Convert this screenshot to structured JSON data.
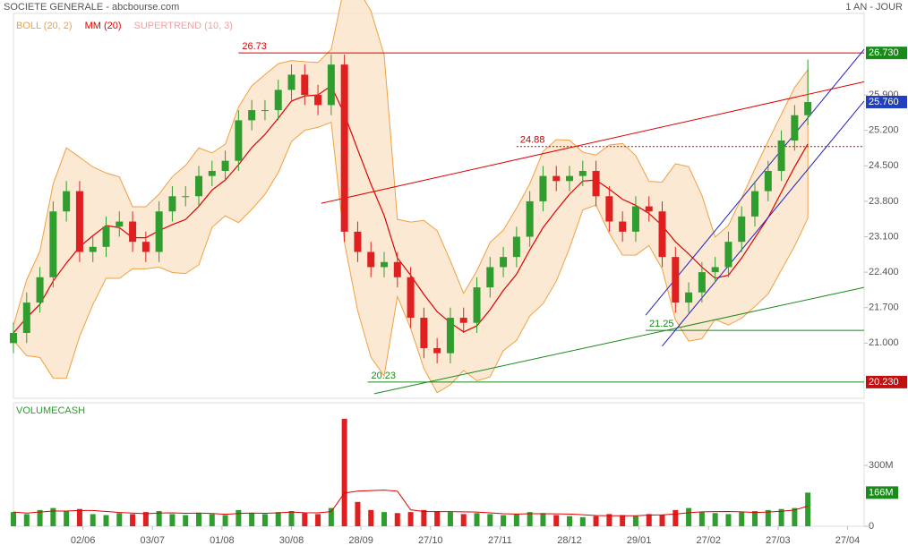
{
  "chart_data": {
    "type": "candlestick",
    "title": "SOCIETE GENERALE - abcbourse.com",
    "period": "1 AN - JOUR",
    "indicators": [
      {
        "name": "BOLL (20, 2)",
        "color": "#f0a040"
      },
      {
        "name": "MM (20)",
        "color": "#e00000"
      },
      {
        "name": "SUPERTREND (10, 3)",
        "color": "#f4a0a0"
      }
    ],
    "x": [
      0,
      4,
      8,
      12,
      16,
      20,
      24,
      28,
      32,
      36,
      40,
      44,
      48,
      52,
      56,
      60,
      64,
      68,
      72,
      76,
      80,
      84,
      88,
      92,
      96,
      100,
      104,
      108,
      112,
      116,
      120,
      124,
      128,
      132,
      136,
      140,
      144,
      148,
      152,
      156,
      160,
      164,
      168,
      172,
      176,
      180,
      184,
      188,
      192,
      196,
      200,
      204,
      208,
      212,
      216,
      220,
      224,
      228,
      232,
      236,
      240
    ],
    "open": [
      21.0,
      21.2,
      21.8,
      22.3,
      23.6,
      24.0,
      22.8,
      22.9,
      23.3,
      23.4,
      23.0,
      22.8,
      23.6,
      23.9,
      23.9,
      24.3,
      24.4,
      24.6,
      25.4,
      25.6,
      25.6,
      26.0,
      26.3,
      25.9,
      25.7,
      26.5,
      23.2,
      22.8,
      22.5,
      22.6,
      22.3,
      21.5,
      20.9,
      20.8,
      21.5,
      21.4,
      22.1,
      22.5,
      22.7,
      23.1,
      23.8,
      24.3,
      24.2,
      24.3,
      24.4,
      23.9,
      23.4,
      23.2,
      23.7,
      23.6,
      22.7,
      21.8,
      22.0,
      22.4,
      22.5,
      23.0,
      23.5,
      24.0,
      24.4,
      25.0,
      25.5
    ],
    "high": [
      21.4,
      22.0,
      22.5,
      23.8,
      24.2,
      24.2,
      23.1,
      23.5,
      23.6,
      23.6,
      23.2,
      23.8,
      24.1,
      24.1,
      24.5,
      24.6,
      24.8,
      25.6,
      25.8,
      25.8,
      26.2,
      26.5,
      26.5,
      26.1,
      26.7,
      26.7,
      23.4,
      23.0,
      22.8,
      22.8,
      22.5,
      21.7,
      21.1,
      21.7,
      21.7,
      22.3,
      22.7,
      22.9,
      23.3,
      24.0,
      24.5,
      24.5,
      24.5,
      24.6,
      24.6,
      24.1,
      23.6,
      23.9,
      23.9,
      23.8,
      22.9,
      22.2,
      22.6,
      22.7,
      23.2,
      23.7,
      24.2,
      24.6,
      25.2,
      25.7,
      26.6
    ],
    "low": [
      20.8,
      21.0,
      21.6,
      22.1,
      23.4,
      22.6,
      22.6,
      22.7,
      23.1,
      22.8,
      22.6,
      22.6,
      23.4,
      23.7,
      23.7,
      24.1,
      24.2,
      24.4,
      25.2,
      25.4,
      25.4,
      25.8,
      25.7,
      25.5,
      25.5,
      23.0,
      22.6,
      22.3,
      22.3,
      22.1,
      21.3,
      20.7,
      20.6,
      20.6,
      21.2,
      21.2,
      21.9,
      22.3,
      22.5,
      22.9,
      23.6,
      24.0,
      24.0,
      24.1,
      23.7,
      23.2,
      23.0,
      23.0,
      23.4,
      22.5,
      21.6,
      21.6,
      21.8,
      22.2,
      22.3,
      22.8,
      23.3,
      23.8,
      24.2,
      24.8,
      25.3
    ],
    "close": [
      21.2,
      21.8,
      22.3,
      23.6,
      24.0,
      22.8,
      22.9,
      23.3,
      23.4,
      23.0,
      22.8,
      23.6,
      23.9,
      23.9,
      24.3,
      24.4,
      24.6,
      25.4,
      25.6,
      25.6,
      26.0,
      26.3,
      25.9,
      25.7,
      26.5,
      23.2,
      22.8,
      22.5,
      22.6,
      22.3,
      21.5,
      20.9,
      20.8,
      21.5,
      21.4,
      22.1,
      22.5,
      22.7,
      23.1,
      23.8,
      24.3,
      24.2,
      24.3,
      24.4,
      23.9,
      23.4,
      23.2,
      23.7,
      23.6,
      22.7,
      21.8,
      22.0,
      22.4,
      22.5,
      23.0,
      23.5,
      24.0,
      24.4,
      25.0,
      25.5,
      25.76
    ],
    "up_color": "#2f9e2f",
    "down_color": "#e02020",
    "last_label": "25.760",
    "last_color": "#2040c0",
    "xlim": [
      0,
      257
    ],
    "xticks": [
      {
        "value": 21,
        "label": "02/06"
      },
      {
        "value": 42,
        "label": "03/07"
      },
      {
        "value": 63,
        "label": "01/08"
      },
      {
        "value": 84,
        "label": "30/08"
      },
      {
        "value": 105,
        "label": "28/09"
      },
      {
        "value": 126,
        "label": "27/10"
      },
      {
        "value": 147,
        "label": "27/11"
      },
      {
        "value": 168,
        "label": "28/12"
      },
      {
        "value": 189,
        "label": "29/01"
      },
      {
        "value": 210,
        "label": "27/02"
      },
      {
        "value": 231,
        "label": "27/03"
      },
      {
        "value": 252,
        "label": "27/04"
      }
    ],
    "ylim": [
      19.91,
      27.51
    ],
    "yticks": [
      {
        "value": 21.0,
        "label": "21.000"
      },
      {
        "value": 21.7,
        "label": "21.700"
      },
      {
        "value": 22.4,
        "label": "22.400"
      },
      {
        "value": 23.1,
        "label": "23.100"
      },
      {
        "value": 23.8,
        "label": "23.800"
      },
      {
        "value": 24.5,
        "label": "24.500"
      },
      {
        "value": 25.2,
        "label": "25.200"
      },
      {
        "value": 25.9,
        "label": "25.900"
      }
    ],
    "levels": [
      {
        "value": 26.73,
        "start": 68,
        "color": "#e00000",
        "dash": false,
        "box_label": "26.730",
        "box_color": "#1a8a1a"
      },
      {
        "value": 24.88,
        "start": 152,
        "color": "#c00000",
        "dash": true
      },
      {
        "value": 21.25,
        "start": 191,
        "color": "#1a8a1a",
        "dash": false
      },
      {
        "value": 20.23,
        "start": 107,
        "color": "#1a8a1a",
        "dash": false,
        "box_label": "20.230",
        "box_color": "#c01010"
      }
    ],
    "trendlines": [
      {
        "x": [
          93,
          257
        ],
        "y": [
          23.76,
          26.16
        ],
        "color": "#e00000"
      },
      {
        "x": [
          109,
          257
        ],
        "y": [
          20.0,
          22.1
        ],
        "color": "#1a8a1a"
      },
      {
        "x": [
          191,
          257
        ],
        "y": [
          21.55,
          26.8
        ],
        "color": "#2020c0"
      },
      {
        "x": [
          196,
          257
        ],
        "y": [
          20.94,
          25.78
        ],
        "color": "#2020c0"
      }
    ],
    "volume": {
      "title": "VOLUMECASH",
      "values": [
        70,
        60,
        80,
        90,
        75,
        85,
        60,
        55,
        65,
        60,
        70,
        75,
        60,
        55,
        65,
        60,
        55,
        80,
        65,
        60,
        70,
        75,
        65,
        60,
        90,
        530,
        120,
        80,
        70,
        65,
        70,
        80,
        75,
        70,
        60,
        65,
        60,
        55,
        60,
        70,
        65,
        55,
        50,
        45,
        50,
        60,
        55,
        50,
        60,
        55,
        80,
        90,
        70,
        65,
        60,
        70,
        75,
        80,
        85,
        90,
        166
      ],
      "last_label": "166M",
      "ylim": [
        0,
        609
      ],
      "yticks": [
        {
          "value": 0,
          "label": "0"
        },
        {
          "value": 300,
          "label": "300M"
        }
      ]
    }
  }
}
